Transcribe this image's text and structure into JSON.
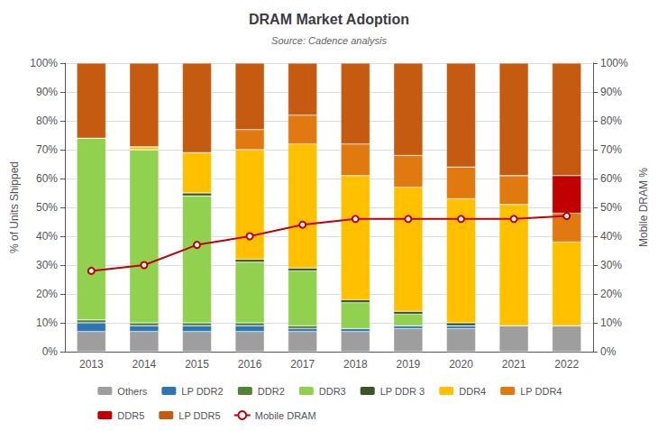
{
  "chart_data": {
    "type": "bar",
    "stacked": true,
    "title": "DRAM Market Adoption",
    "subtitle": "Source: Cadence analysis",
    "ylabel": "% of Units Shipped",
    "y2label": "Mobile DRAM %",
    "categories": [
      "2013",
      "2014",
      "2015",
      "2016",
      "2017",
      "2018",
      "2019",
      "2020",
      "2021",
      "2022"
    ],
    "series": [
      {
        "name": "Others",
        "color": "#9e9e9e",
        "values": [
          0.07,
          0.07,
          0.07,
          0.07,
          0.07,
          0.07,
          0.08,
          0.08,
          0.09,
          0.09
        ]
      },
      {
        "name": "LP DDR2",
        "color": "#2e75b6",
        "values": [
          0.03,
          0.02,
          0.02,
          0.02,
          0.01,
          0.01,
          0.01,
          0.01,
          0.0,
          0.0
        ]
      },
      {
        "name": "DDR2",
        "color": "#548235",
        "values": [
          0.01,
          0.01,
          0.01,
          0.01,
          0.01,
          0.0,
          0.0,
          0.0,
          0.0,
          0.0
        ]
      },
      {
        "name": "DDR3",
        "color": "#92d050",
        "values": [
          0.63,
          0.6,
          0.44,
          0.21,
          0.19,
          0.09,
          0.04,
          0.0,
          0.0,
          0.0
        ]
      },
      {
        "name": "LP DDR 3",
        "color": "#375623",
        "values": [
          0.0,
          0.0,
          0.01,
          0.01,
          0.01,
          0.01,
          0.01,
          0.01,
          0.0,
          0.0
        ]
      },
      {
        "name": "DDR4",
        "color": "#ffc000",
        "values": [
          0.0,
          0.01,
          0.14,
          0.38,
          0.43,
          0.43,
          0.43,
          0.43,
          0.42,
          0.29
        ]
      },
      {
        "name": "LP DDR4",
        "color": "#e07a10",
        "values": [
          0.0,
          0.0,
          0.0,
          0.07,
          0.1,
          0.11,
          0.11,
          0.11,
          0.1,
          0.1
        ]
      },
      {
        "name": "DDR5",
        "color": "#c00000",
        "values": [
          0.0,
          0.0,
          0.0,
          0.0,
          0.0,
          0.0,
          0.0,
          0.0,
          0.0,
          0.13
        ]
      },
      {
        "name": "LP DDR5",
        "color": "#c55a11",
        "values": [
          0.26,
          0.29,
          0.31,
          0.23,
          0.18,
          0.28,
          0.32,
          0.36,
          0.39,
          0.39
        ]
      },
      {
        "name": "Mobile DRAM",
        "type": "line",
        "axis": "y2",
        "marker": "circle",
        "color": "#c00000",
        "values": [
          0.28,
          0.3,
          0.37,
          0.4,
          0.44,
          0.46,
          0.46,
          0.46,
          0.46,
          0.47
        ]
      }
    ],
    "ylim": [
      0,
      1.0
    ],
    "yticks": [
      {
        "value": 0,
        "label": "0%"
      },
      {
        "value": 0.1,
        "label": "10%"
      },
      {
        "value": 0.2,
        "label": "20%"
      },
      {
        "value": 0.3,
        "label": "30%"
      },
      {
        "value": 0.4,
        "label": "40%"
      },
      {
        "value": 0.5,
        "label": "50%"
      },
      {
        "value": 0.6,
        "label": "60%"
      },
      {
        "value": 0.7,
        "label": "70%"
      },
      {
        "value": 0.8,
        "label": "80%"
      },
      {
        "value": 0.9,
        "label": "90%"
      },
      {
        "value": 1.0,
        "label": "100%"
      }
    ],
    "y2lim": [
      0,
      1.0
    ],
    "y2ticks": [
      {
        "value": 0,
        "label": "0%"
      },
      {
        "value": 0.1,
        "label": "10%"
      },
      {
        "value": 0.2,
        "label": "20%"
      },
      {
        "value": 0.3,
        "label": "30%"
      },
      {
        "value": 0.4,
        "label": "40%"
      },
      {
        "value": 0.5,
        "label": "50%"
      },
      {
        "value": 0.6,
        "label": "60%"
      },
      {
        "value": 0.7,
        "label": "70%"
      },
      {
        "value": 0.8,
        "label": "80%"
      },
      {
        "value": 0.9,
        "label": "90%"
      },
      {
        "value": 1.0,
        "label": "100%"
      }
    ],
    "grid": true,
    "legend": "bottom"
  }
}
